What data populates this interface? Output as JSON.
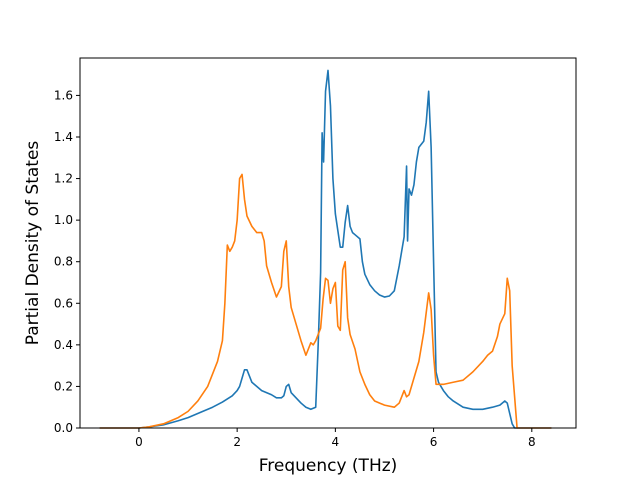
{
  "chart_data": {
    "type": "line",
    "xlabel": "Frequency (THz)",
    "ylabel": "Partial Density of States",
    "xlim": [
      -1.2,
      8.9
    ],
    "ylim": [
      0.0,
      1.78
    ],
    "xticks": [
      0,
      2,
      4,
      6,
      8
    ],
    "yticks": [
      0.0,
      0.2,
      0.4,
      0.6,
      0.8,
      1.0,
      1.2,
      1.4,
      1.6
    ],
    "xtick_labels": [
      "0",
      "2",
      "4",
      "6",
      "8"
    ],
    "ytick_labels": [
      "0.0",
      "0.2",
      "0.4",
      "0.6",
      "0.8",
      "1.0",
      "1.2",
      "1.4",
      "1.6"
    ],
    "grid": false,
    "series": [
      {
        "color": "#1f77b4",
        "x": [
          -0.8,
          0.0,
          0.2,
          0.5,
          0.8,
          1.0,
          1.3,
          1.5,
          1.7,
          1.9,
          2.0,
          2.05,
          2.1,
          2.15,
          2.2,
          2.3,
          2.5,
          2.7,
          2.8,
          2.9,
          2.95,
          3.0,
          3.05,
          3.1,
          3.3,
          3.4,
          3.5,
          3.6,
          3.65,
          3.7,
          3.73,
          3.76,
          3.8,
          3.85,
          3.9,
          3.95,
          4.0,
          4.05,
          4.1,
          4.15,
          4.2,
          4.25,
          4.3,
          4.35,
          4.4,
          4.5,
          4.55,
          4.6,
          4.7,
          4.8,
          4.9,
          5.0,
          5.1,
          5.2,
          5.3,
          5.4,
          5.45,
          5.47,
          5.5,
          5.55,
          5.6,
          5.65,
          5.7,
          5.8,
          5.85,
          5.9,
          5.95,
          6.0,
          6.05,
          6.1,
          6.15,
          6.2,
          6.3,
          6.4,
          6.5,
          6.6,
          6.8,
          7.0,
          7.2,
          7.35,
          7.45,
          7.5,
          7.55,
          7.6,
          7.65,
          7.7,
          8.4
        ],
        "y": [
          0.0,
          0.0,
          0.005,
          0.015,
          0.035,
          0.05,
          0.08,
          0.1,
          0.125,
          0.155,
          0.18,
          0.2,
          0.24,
          0.28,
          0.28,
          0.22,
          0.18,
          0.16,
          0.145,
          0.145,
          0.155,
          0.2,
          0.21,
          0.17,
          0.12,
          0.1,
          0.09,
          0.1,
          0.4,
          0.75,
          1.42,
          1.28,
          1.62,
          1.72,
          1.55,
          1.2,
          1.03,
          0.95,
          0.87,
          0.87,
          0.99,
          1.07,
          0.97,
          0.94,
          0.93,
          0.91,
          0.8,
          0.74,
          0.69,
          0.66,
          0.64,
          0.63,
          0.635,
          0.66,
          0.78,
          0.92,
          1.26,
          0.9,
          1.15,
          1.12,
          1.17,
          1.28,
          1.35,
          1.38,
          1.47,
          1.62,
          1.35,
          0.8,
          0.27,
          0.22,
          0.2,
          0.18,
          0.15,
          0.13,
          0.115,
          0.1,
          0.09,
          0.09,
          0.1,
          0.11,
          0.13,
          0.12,
          0.07,
          0.02,
          0.0,
          0.0,
          0.0
        ]
      },
      {
        "color": "#ff7f0e",
        "x": [
          -0.8,
          0.0,
          0.2,
          0.5,
          0.8,
          1.0,
          1.2,
          1.4,
          1.6,
          1.7,
          1.75,
          1.8,
          1.85,
          1.9,
          1.95,
          2.0,
          2.05,
          2.1,
          2.15,
          2.2,
          2.3,
          2.4,
          2.5,
          2.55,
          2.6,
          2.7,
          2.8,
          2.9,
          2.95,
          3.0,
          3.05,
          3.1,
          3.2,
          3.3,
          3.4,
          3.5,
          3.55,
          3.6,
          3.7,
          3.75,
          3.8,
          3.85,
          3.9,
          3.95,
          4.0,
          4.05,
          4.1,
          4.15,
          4.2,
          4.25,
          4.3,
          4.4,
          4.5,
          4.6,
          4.7,
          4.8,
          5.0,
          5.2,
          5.3,
          5.4,
          5.45,
          5.5,
          5.6,
          5.7,
          5.8,
          5.9,
          5.95,
          6.0,
          6.05,
          6.1,
          6.2,
          6.4,
          6.6,
          6.8,
          7.0,
          7.1,
          7.2,
          7.3,
          7.35,
          7.45,
          7.5,
          7.55,
          7.6,
          7.7,
          8.4
        ],
        "y": [
          0.0,
          0.0,
          0.005,
          0.02,
          0.05,
          0.08,
          0.13,
          0.2,
          0.32,
          0.42,
          0.6,
          0.88,
          0.85,
          0.87,
          0.9,
          1.0,
          1.2,
          1.22,
          1.1,
          1.02,
          0.97,
          0.94,
          0.94,
          0.9,
          0.78,
          0.7,
          0.63,
          0.68,
          0.85,
          0.9,
          0.68,
          0.58,
          0.5,
          0.42,
          0.35,
          0.41,
          0.4,
          0.42,
          0.48,
          0.62,
          0.72,
          0.71,
          0.6,
          0.67,
          0.7,
          0.49,
          0.47,
          0.76,
          0.8,
          0.53,
          0.45,
          0.38,
          0.27,
          0.21,
          0.16,
          0.13,
          0.11,
          0.1,
          0.12,
          0.18,
          0.15,
          0.16,
          0.24,
          0.32,
          0.46,
          0.65,
          0.57,
          0.35,
          0.21,
          0.21,
          0.21,
          0.22,
          0.23,
          0.27,
          0.32,
          0.35,
          0.37,
          0.44,
          0.5,
          0.55,
          0.72,
          0.66,
          0.3,
          0.0,
          0.0
        ]
      }
    ]
  }
}
